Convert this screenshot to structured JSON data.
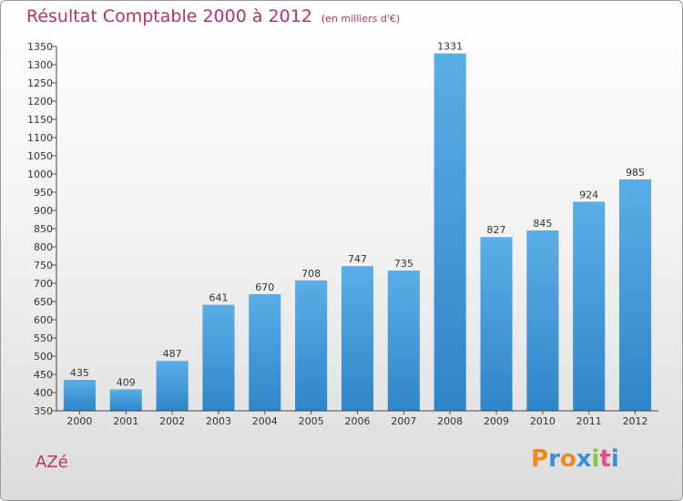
{
  "title": "Résultat Comptable 2000 à 2012",
  "subtitle": "(en milliers d'€)",
  "commune": "AZé",
  "logo": {
    "letters": [
      "P",
      "r",
      "o",
      "x",
      "i",
      "t",
      "i"
    ],
    "colors": [
      "#f08a1c",
      "#3a8fd8",
      "#f08a1c",
      "#3a8fd8",
      "#8cc63f",
      "#e84a8a",
      "#3a8fd8"
    ]
  },
  "colors": {
    "bar": "#2f86c8",
    "bar_light": "#5aaee6",
    "title": "#b0336c"
  },
  "chart_data": {
    "type": "bar",
    "title": "Résultat Comptable 2000 à 2012",
    "xlabel": "",
    "ylabel": "",
    "categories": [
      "2000",
      "2001",
      "2002",
      "2003",
      "2004",
      "2005",
      "2006",
      "2007",
      "2008",
      "2009",
      "2010",
      "2011",
      "2012"
    ],
    "values": [
      435,
      409,
      487,
      641,
      670,
      708,
      747,
      735,
      1331,
      827,
      845,
      924,
      985
    ],
    "ylim": [
      350,
      1350
    ],
    "yticks": [
      350,
      400,
      450,
      500,
      550,
      600,
      650,
      700,
      750,
      800,
      850,
      900,
      950,
      1000,
      1050,
      1100,
      1150,
      1200,
      1250,
      1300,
      1350
    ],
    "grid": false,
    "legend": "none"
  }
}
